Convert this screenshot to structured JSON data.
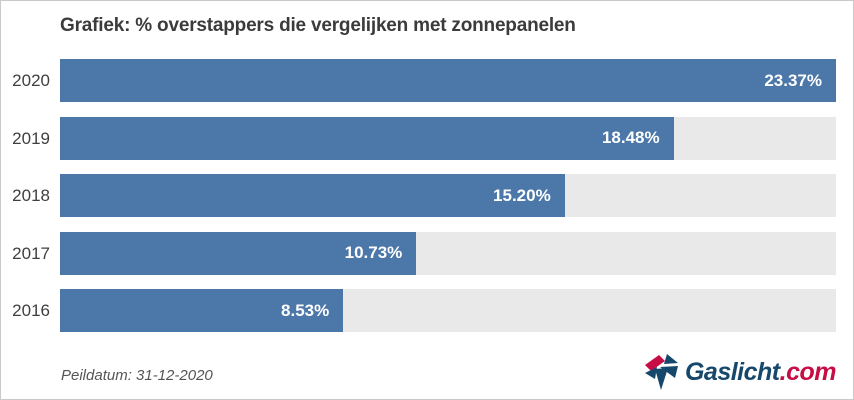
{
  "title": "Grafiek: % overstappers die vergelijken met zonnepanelen",
  "footer": {
    "peildatum": "Peildatum: 31-12-2020"
  },
  "logo": {
    "name": "Gaslicht.com",
    "text_main": "Gaslicht",
    "text_suffix": ".com"
  },
  "colors": {
    "bar": "#4b77a9",
    "track": "#e9e9e9",
    "border": "#c9c9c9",
    "title": "#3b3b3b",
    "value": "#ffffff",
    "logoMain": "#16486b",
    "logoSuffix": "#c60d46"
  },
  "chart_data": {
    "type": "bar",
    "orientation": "horizontal",
    "title": "Grafiek: % overstappers die vergelijken met zonnepanelen",
    "categories": [
      "2020",
      "2019",
      "2018",
      "2017",
      "2016"
    ],
    "values": [
      23.37,
      18.48,
      15.2,
      10.73,
      8.53
    ],
    "value_labels": [
      "23.37%",
      "18.48%",
      "15.20%",
      "10.73%",
      "8.53%"
    ],
    "xlabel": "",
    "ylabel": "",
    "xlim": [
      0,
      23.37
    ],
    "grid": false,
    "legend": false
  }
}
